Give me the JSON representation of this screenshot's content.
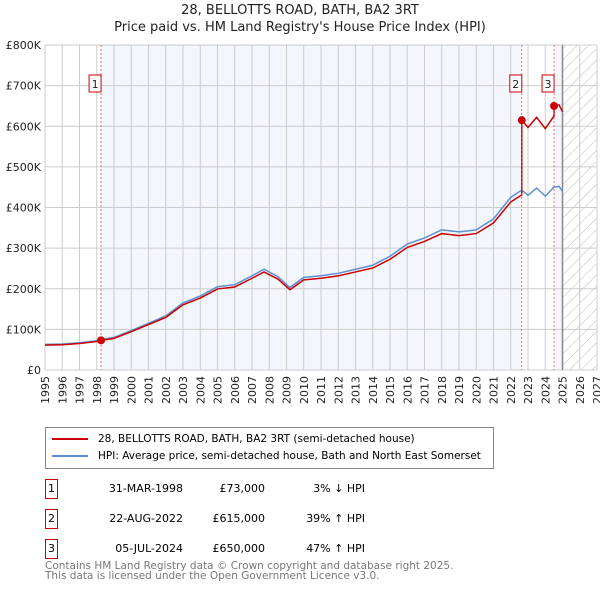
{
  "chart_data": {
    "type": "line",
    "title": "28, BELLOTTS ROAD, BATH, BA2 3RT",
    "subtitle": "Price paid vs. HM Land Registry's House Price Index (HPI)",
    "xlim": [
      1995,
      2027
    ],
    "ylim": [
      0,
      800000
    ],
    "x_ticks": [
      "1995",
      "1996",
      "1997",
      "1998",
      "1999",
      "2000",
      "2001",
      "2002",
      "2003",
      "2004",
      "2005",
      "2006",
      "2007",
      "2008",
      "2009",
      "2010",
      "2011",
      "2012",
      "2013",
      "2014",
      "2015",
      "2016",
      "2017",
      "2018",
      "2019",
      "2020",
      "2021",
      "2022",
      "2023",
      "2024",
      "2025",
      "2026",
      "2027"
    ],
    "y_ticks": [
      "£0",
      "£100K",
      "£200K",
      "£300K",
      "£400K",
      "£500K",
      "£600K",
      "£700K",
      "£800K"
    ],
    "hpi_series": {
      "name": "HPI: Average price, semi-detached house, Bath and North East Somerset",
      "color": "#5b8fd4",
      "x": [
        1995,
        1996,
        1997,
        1998,
        1998.25,
        1999,
        2000,
        2001,
        2002,
        2003,
        2004,
        2005,
        2006,
        2007,
        2007.7,
        2008.5,
        2009.2,
        2010,
        2011,
        2012,
        2013,
        2014,
        2015,
        2016,
        2017,
        2018,
        2019,
        2020,
        2021,
        2022,
        2022.64,
        2023,
        2023.5,
        2024,
        2024.5,
        2024.8,
        2025
      ],
      "y": [
        63000,
        64000,
        67000,
        72000,
        75000,
        80000,
        97000,
        115000,
        133000,
        165000,
        182000,
        205000,
        210000,
        232000,
        248000,
        230000,
        203000,
        228000,
        232000,
        238000,
        248000,
        258000,
        280000,
        310000,
        325000,
        345000,
        340000,
        345000,
        372000,
        425000,
        443000,
        430000,
        448000,
        428000,
        450000,
        452000,
        440000
      ]
    },
    "price_series": {
      "name": "28, BELLOTTS ROAD, BATH, BA2 3RT (semi-detached house)",
      "color": "#cc0000"
    },
    "sales": [
      {
        "n": "1",
        "x": 1998.25,
        "date": "31-MAR-1998",
        "price": 73000,
        "price_label": "£73,000",
        "hpi": "3% ↓ HPI"
      },
      {
        "n": "2",
        "x": 2022.64,
        "date": "22-AUG-2022",
        "price": 615000,
        "price_label": "£615,000",
        "hpi": "39% ↑ HPI"
      },
      {
        "n": "3",
        "x": 2024.51,
        "date": "05-JUL-2024",
        "price": 650000,
        "price_label": "£650,000",
        "hpi": "47% ↑ HPI"
      }
    ],
    "forecast_from": 2025.0
  },
  "footer": [
    "Contains HM Land Registry data © Crown copyright and database right 2025.",
    "This data is licensed under the Open Government Licence v3.0."
  ]
}
